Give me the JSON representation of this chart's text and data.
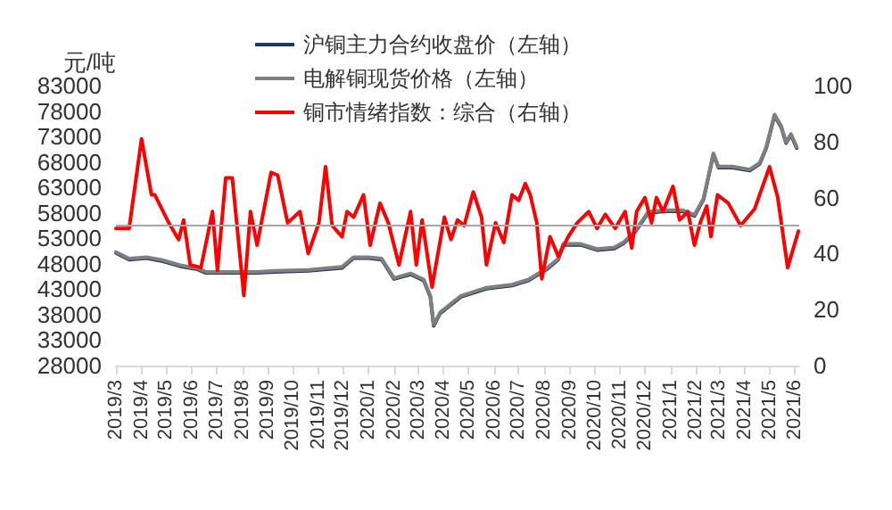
{
  "chart_data": {
    "type": "line",
    "ylabel": "元/吨",
    "legend": "top",
    "grid": false,
    "marker": "none",
    "line_style": "solid",
    "xlim": [
      "2019-03-01",
      "2021-06-06"
    ],
    "xticks": [
      {
        "value": "2019-03",
        "label": "2019/3"
      },
      {
        "value": "2019-04",
        "label": "2019/4"
      },
      {
        "value": "2019-05",
        "label": "2019/5"
      },
      {
        "value": "2019-06",
        "label": "2019/6"
      },
      {
        "value": "2019-07",
        "label": "2019/7"
      },
      {
        "value": "2019-08",
        "label": "2019/8"
      },
      {
        "value": "2019-09",
        "label": "2019/9"
      },
      {
        "value": "2019-10",
        "label": "2019/10"
      },
      {
        "value": "2019-11",
        "label": "2019/11"
      },
      {
        "value": "2019-12",
        "label": "2019/12"
      },
      {
        "value": "2020-01",
        "label": "2020/1"
      },
      {
        "value": "2020-02",
        "label": "2020/2"
      },
      {
        "value": "2020-03",
        "label": "2020/3"
      },
      {
        "value": "2020-04",
        "label": "2020/4"
      },
      {
        "value": "2020-05",
        "label": "2020/5"
      },
      {
        "value": "2020-06",
        "label": "2020/6"
      },
      {
        "value": "2020-07",
        "label": "2020/7"
      },
      {
        "value": "2020-08",
        "label": "2020/8"
      },
      {
        "value": "2020-09",
        "label": "2020/9"
      },
      {
        "value": "2020-10",
        "label": "2020/10"
      },
      {
        "value": "2020-11",
        "label": "2020/11"
      },
      {
        "value": "2020-12",
        "label": "2020/12"
      },
      {
        "value": "2021-01",
        "label": "2021/1"
      },
      {
        "value": "2021-02",
        "label": "2021/2"
      },
      {
        "value": "2021-03",
        "label": "2021/3"
      },
      {
        "value": "2021-04",
        "label": "2021/4"
      },
      {
        "value": "2021-05",
        "label": "2021/5"
      },
      {
        "value": "2021-06",
        "label": "2021/6"
      }
    ],
    "ylim": [
      28000,
      83000
    ],
    "yticks": [
      28000,
      33000,
      38000,
      43000,
      48000,
      53000,
      58000,
      63000,
      68000,
      73000,
      78000,
      83000
    ],
    "y2lim": [
      0,
      100
    ],
    "y2ticks": [
      0,
      20,
      40,
      60,
      80,
      100
    ],
    "ref_lines": [
      {
        "axis": "y2",
        "value": 50,
        "color": "#a6a6a6",
        "line_style": "solid"
      }
    ],
    "series": [
      {
        "name": "沪铜主力合约收盘价（左轴）",
        "color": "#1f3864",
        "x": [
          "2019-03-01",
          "2019-03-17",
          "2019-04-07",
          "2019-04-27",
          "2019-05-18",
          "2019-06-08",
          "2019-06-18",
          "2019-07-09",
          "2019-07-29",
          "2019-08-19",
          "2019-09-09",
          "2019-10-20",
          "2019-11-30",
          "2019-12-14",
          "2020-01-01",
          "2020-01-17",
          "2020-02-01",
          "2020-02-21",
          "2020-03-08",
          "2020-03-16",
          "2020-03-20",
          "2020-03-28",
          "2020-04-02",
          "2020-04-22",
          "2020-05-23",
          "2020-06-23",
          "2020-07-13",
          "2020-08-04",
          "2020-08-18",
          "2020-08-24",
          "2020-09-14",
          "2020-10-04",
          "2020-10-25",
          "2020-11-05",
          "2020-11-19",
          "2020-12-05",
          "2020-12-25",
          "2021-01-16",
          "2021-01-30",
          "2021-02-10",
          "2021-02-22",
          "2021-02-28",
          "2021-03-17",
          "2021-04-07",
          "2021-04-19",
          "2021-04-27",
          "2021-05-07",
          "2021-05-15",
          "2021-05-21",
          "2021-05-27",
          "2021-06-03"
        ],
        "values": [
          50100,
          48800,
          49100,
          48500,
          47500,
          46900,
          46200,
          46200,
          46200,
          46200,
          46400,
          46600,
          47200,
          49100,
          49100,
          48800,
          45000,
          45900,
          44700,
          41500,
          35800,
          38300,
          38900,
          41500,
          43100,
          43700,
          44700,
          46900,
          48800,
          51700,
          51700,
          50700,
          51000,
          52000,
          54200,
          58000,
          58300,
          58300,
          57400,
          60600,
          69500,
          66900,
          66900,
          66300,
          67600,
          70700,
          77100,
          74900,
          71700,
          73300,
          70700
        ],
        "axis": "y"
      },
      {
        "name": "电解铜现货价格（左轴）",
        "color": "#7f7f7f",
        "x": [
          "2019-03-01",
          "2019-03-17",
          "2019-04-07",
          "2019-04-27",
          "2019-05-18",
          "2019-06-08",
          "2019-06-18",
          "2019-07-09",
          "2019-07-29",
          "2019-08-19",
          "2019-09-09",
          "2019-10-20",
          "2019-11-30",
          "2019-12-14",
          "2020-01-01",
          "2020-01-17",
          "2020-02-01",
          "2020-02-21",
          "2020-03-08",
          "2020-03-16",
          "2020-03-20",
          "2020-03-28",
          "2020-04-02",
          "2020-04-22",
          "2020-05-23",
          "2020-06-23",
          "2020-07-13",
          "2020-08-04",
          "2020-08-18",
          "2020-08-24",
          "2020-09-14",
          "2020-10-04",
          "2020-10-25",
          "2020-11-05",
          "2020-11-19",
          "2020-12-05",
          "2020-12-25",
          "2021-01-16",
          "2021-01-30",
          "2021-02-10",
          "2021-02-22",
          "2021-02-28",
          "2021-03-17",
          "2021-04-07",
          "2021-04-19",
          "2021-04-27",
          "2021-05-07",
          "2021-05-15",
          "2021-05-21",
          "2021-05-27",
          "2021-06-03"
        ],
        "values": [
          50300,
          49000,
          49300,
          48700,
          47700,
          47100,
          46400,
          46400,
          46400,
          46400,
          46600,
          46800,
          47400,
          49300,
          49300,
          49000,
          45200,
          46100,
          44900,
          41700,
          36000,
          38500,
          39100,
          41700,
          43300,
          43900,
          44900,
          47100,
          49000,
          51900,
          51900,
          50900,
          51200,
          52200,
          54400,
          58200,
          58500,
          58500,
          57600,
          60800,
          69700,
          67100,
          67100,
          66500,
          67800,
          70900,
          77300,
          75100,
          71900,
          73500,
          70900
        ],
        "axis": "y"
      },
      {
        "name": "铜市情绪指数：综合（右轴）",
        "color": "#ff0000",
        "axis": "y2",
        "x": [
          "2019-03-01",
          "2019-03-17",
          "2019-04-01",
          "2019-04-13",
          "2019-04-17",
          "2019-05-04",
          "2019-05-16",
          "2019-05-22",
          "2019-05-30",
          "2019-06-12",
          "2019-06-26",
          "2019-07-02",
          "2019-07-12",
          "2019-07-20",
          "2019-08-03",
          "2019-08-11",
          "2019-08-19",
          "2019-09-05",
          "2019-09-13",
          "2019-09-25",
          "2019-10-10",
          "2019-10-20",
          "2019-11-02",
          "2019-11-10",
          "2019-11-18",
          "2019-11-30",
          "2019-12-06",
          "2019-12-14",
          "2019-12-26",
          "2020-01-03",
          "2020-01-15",
          "2020-01-25",
          "2020-02-07",
          "2020-02-21",
          "2020-02-28",
          "2020-03-06",
          "2020-03-18",
          "2020-04-02",
          "2020-04-10",
          "2020-04-18",
          "2020-04-26",
          "2020-05-07",
          "2020-05-17",
          "2020-05-23",
          "2020-06-03",
          "2020-06-13",
          "2020-06-23",
          "2020-07-01",
          "2020-07-09",
          "2020-07-15",
          "2020-07-23",
          "2020-07-29",
          "2020-08-08",
          "2020-08-18",
          "2020-08-30",
          "2020-09-10",
          "2020-09-24",
          "2020-10-04",
          "2020-10-14",
          "2020-10-26",
          "2020-11-07",
          "2020-11-15",
          "2020-11-21",
          "2020-12-01",
          "2020-12-09",
          "2020-12-15",
          "2020-12-23",
          "2021-01-04",
          "2021-01-12",
          "2021-01-22",
          "2021-01-30",
          "2021-02-06",
          "2021-02-14",
          "2021-02-19",
          "2021-02-27",
          "2021-03-12",
          "2021-03-27",
          "2021-04-13",
          "2021-05-01",
          "2021-05-11",
          "2021-05-23",
          "2021-06-05"
        ],
        "values": [
          49,
          49,
          81,
          61,
          61,
          51,
          45,
          52,
          36,
          35,
          55,
          34,
          67,
          67,
          25,
          55,
          43,
          69,
          68,
          51,
          55,
          40,
          51,
          71,
          50,
          46,
          55,
          53,
          61,
          43,
          58,
          51,
          36,
          55,
          36,
          52,
          28,
          53,
          45,
          52,
          50,
          62,
          53,
          36,
          51,
          44,
          61,
          59,
          65,
          61,
          51,
          31,
          46,
          39,
          46,
          51,
          55,
          49,
          54,
          49,
          55,
          42,
          55,
          60,
          51,
          60,
          55,
          64,
          52,
          55,
          43,
          51,
          57,
          46,
          61,
          58,
          50,
          56,
          71,
          60,
          35,
          48
        ]
      }
    ]
  }
}
